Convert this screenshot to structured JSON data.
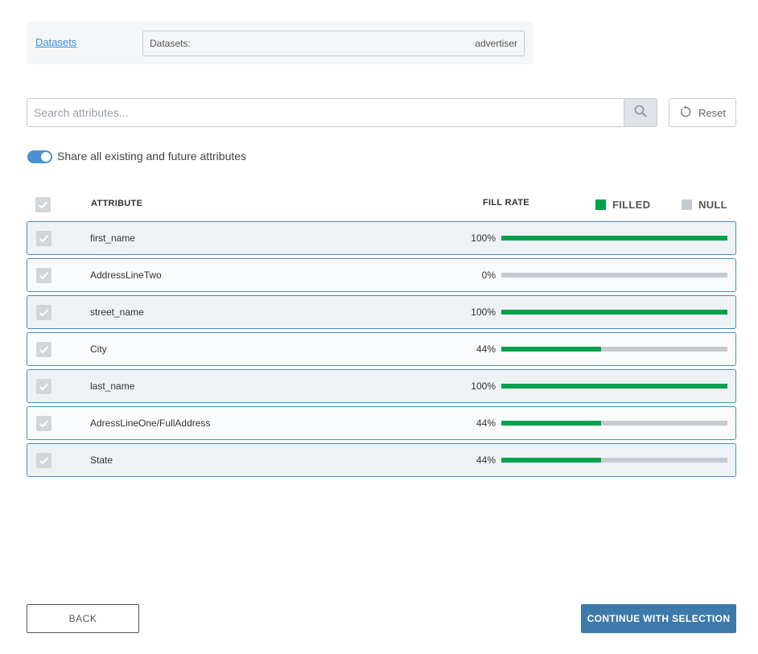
{
  "datasets": {
    "link_label": "Datasets",
    "field_label": "Datasets:",
    "field_value": "advertiser"
  },
  "search": {
    "placeholder": "Search attributes...",
    "value": "",
    "icon": "search-icon"
  },
  "reset": {
    "label": "Reset",
    "icon": "reset-icon"
  },
  "share_toggle": {
    "label": "Share all existing and future attributes",
    "on": true
  },
  "table": {
    "header_attribute": "ATTRIBUTE",
    "header_fill_rate": "FILL RATE",
    "legend_filled": "FILLED",
    "legend_null": "NULL",
    "filled_color": "#00a14b",
    "null_color": "#c5cbd0",
    "rows": [
      {
        "name": "first_name",
        "fill_label": "100%",
        "fill": 1.0
      },
      {
        "name": "AddressLineTwo",
        "fill_label": "0%",
        "fill": 0.0
      },
      {
        "name": "street_name",
        "fill_label": "100%",
        "fill": 1.0
      },
      {
        "name": "City",
        "fill_label": "44%",
        "fill": 0.44
      },
      {
        "name": "last_name",
        "fill_label": "100%",
        "fill": 1.0
      },
      {
        "name": "AdressLineOne/FullAddress",
        "fill_label": "44%",
        "fill": 0.44
      },
      {
        "name": "State",
        "fill_label": "44%",
        "fill": 0.44
      }
    ]
  },
  "footer": {
    "back_label": "BACK",
    "continue_label": "CONTINUE WITH SELECTION",
    "continue_color": "#3d7aaa"
  }
}
